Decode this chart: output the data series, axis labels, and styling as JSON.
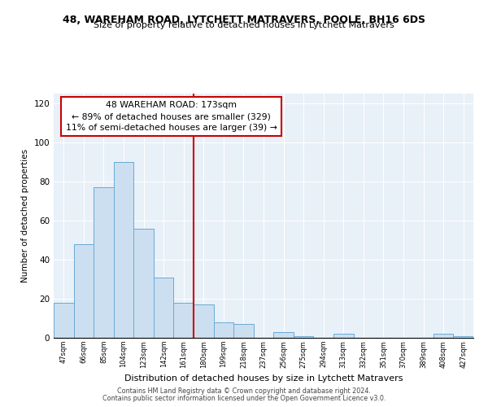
{
  "title1": "48, WAREHAM ROAD, LYTCHETT MATRAVERS, POOLE, BH16 6DS",
  "title2": "Size of property relative to detached houses in Lytchett Matravers",
  "xlabel": "Distribution of detached houses by size in Lytchett Matravers",
  "ylabel": "Number of detached properties",
  "categories": [
    "47sqm",
    "66sqm",
    "85sqm",
    "104sqm",
    "123sqm",
    "142sqm",
    "161sqm",
    "180sqm",
    "199sqm",
    "218sqm",
    "237sqm",
    "256sqm",
    "275sqm",
    "294sqm",
    "313sqm",
    "332sqm",
    "351sqm",
    "370sqm",
    "389sqm",
    "408sqm",
    "427sqm"
  ],
  "values": [
    18,
    48,
    77,
    90,
    56,
    31,
    18,
    17,
    8,
    7,
    0,
    3,
    1,
    0,
    2,
    0,
    0,
    0,
    0,
    2,
    1
  ],
  "bar_color": "#ccdff0",
  "bar_edge_color": "#6aaad4",
  "vline_color": "#cc0000",
  "annotation_title": "48 WAREHAM ROAD: 173sqm",
  "annotation_line1": "← 89% of detached houses are smaller (329)",
  "annotation_line2": "11% of semi-detached houses are larger (39) →",
  "ylim": [
    0,
    125
  ],
  "yticks": [
    0,
    20,
    40,
    60,
    80,
    100,
    120
  ],
  "footer1": "Contains HM Land Registry data © Crown copyright and database right 2024.",
  "footer2": "Contains public sector information licensed under the Open Government Licence v3.0.",
  "plot_bg_color": "#e8f0f8",
  "grid_color": "#ffffff"
}
